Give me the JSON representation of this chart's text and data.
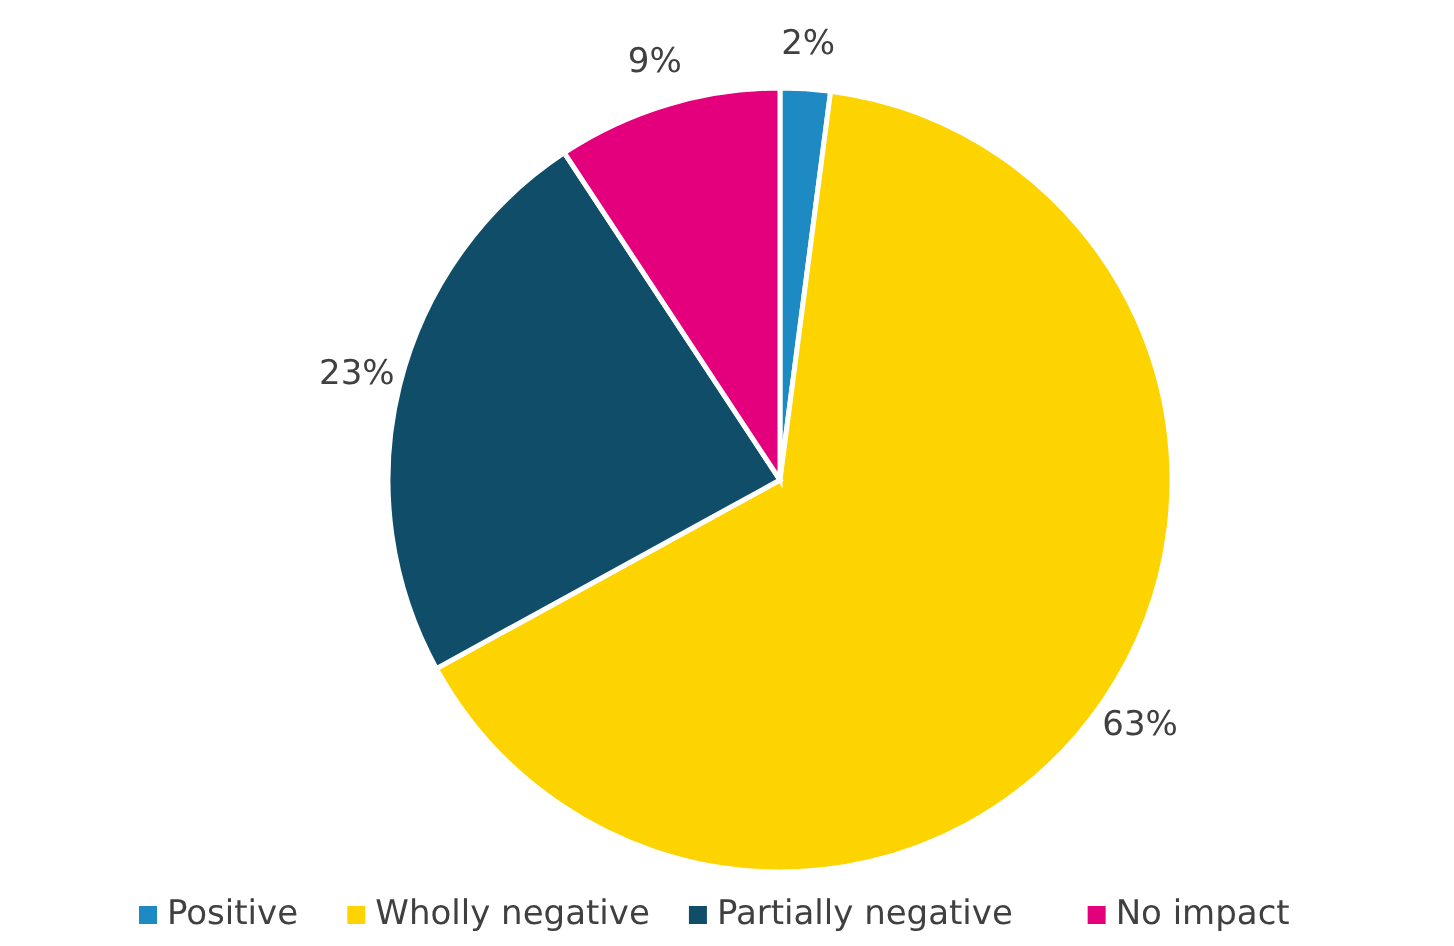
{
  "chart_data": {
    "type": "pie",
    "categories": [
      "Positive",
      "Wholly negative",
      "Partially negative",
      "No impact"
    ],
    "values": [
      2,
      63,
      23,
      9
    ],
    "colors": [
      "#1e8ac4",
      "#fdd300",
      "#0f4d69",
      "#e4007d"
    ],
    "value_labels": [
      "2%",
      "63%",
      "23%",
      "9%"
    ],
    "legend": "bottom"
  }
}
